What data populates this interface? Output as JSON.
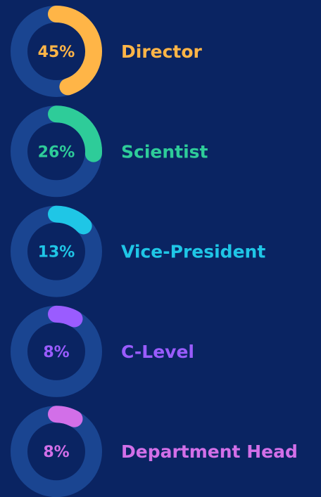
{
  "chart_data": {
    "type": "donut",
    "categories": [
      "Director",
      "Scientist",
      "Vice-President",
      "C-Level",
      "Department Head"
    ],
    "values": [
      45,
      26,
      13,
      8,
      8
    ],
    "value_labels": [
      "45%",
      "26%",
      "13%",
      "8%",
      "8%"
    ],
    "colors": [
      "#ffb547",
      "#2ecc99",
      "#1fc6e6",
      "#9a5cff",
      "#d26fe8"
    ],
    "track_color": "#1a4591"
  }
}
